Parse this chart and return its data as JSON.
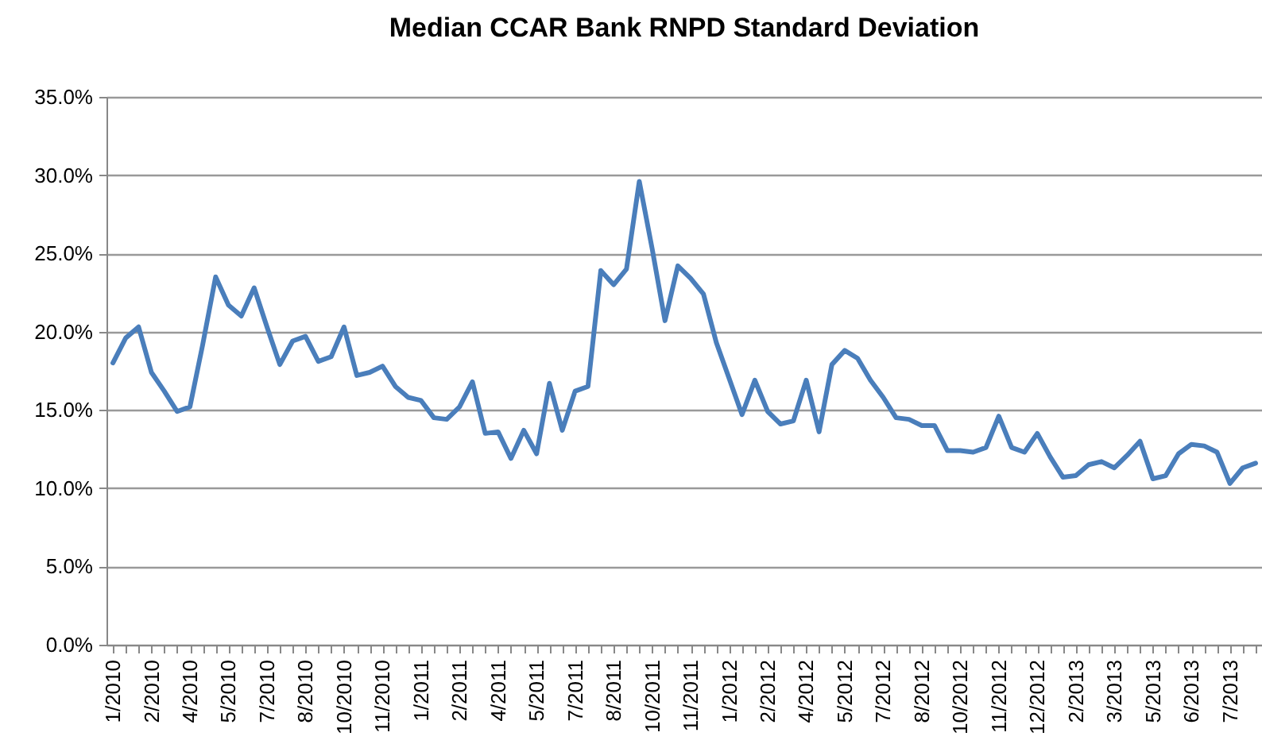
{
  "chart_data": {
    "type": "line",
    "title": "Median CCAR Bank RNPD Standard Deviation",
    "categories": [
      "1/2010",
      null,
      null,
      "2/2010",
      null,
      null,
      "4/2010",
      null,
      null,
      "5/2010",
      null,
      null,
      "7/2010",
      null,
      null,
      "8/2010",
      null,
      null,
      "10/2010",
      null,
      null,
      "11/2010",
      null,
      null,
      "1/2011",
      null,
      null,
      "2/2011",
      null,
      null,
      "4/2011",
      null,
      null,
      "5/2011",
      null,
      null,
      "7/2011",
      null,
      null,
      "8/2011",
      null,
      null,
      "10/2011",
      null,
      null,
      "11/2011",
      null,
      null,
      "1/2012",
      null,
      null,
      "2/2012",
      null,
      null,
      "4/2012",
      null,
      null,
      "5/2012",
      null,
      null,
      "7/2012",
      null,
      null,
      "8/2012",
      null,
      null,
      "10/2012",
      null,
      null,
      "11/2012",
      null,
      null,
      "12/2012",
      null,
      null,
      "2/2013",
      null,
      null,
      "3/2013",
      null,
      null,
      "5/2013",
      null,
      null,
      "6/2013",
      null,
      null,
      "7/2013",
      null,
      null
    ],
    "series": [
      {
        "color": "#4a7ebb",
        "values": [
          18.0,
          19.6,
          20.3,
          17.4,
          16.2,
          14.9,
          15.2,
          19.2,
          23.5,
          21.7,
          21.0,
          22.8,
          20.3,
          17.9,
          19.4,
          19.7,
          18.1,
          18.4,
          20.3,
          17.2,
          17.4,
          17.8,
          16.5,
          15.8,
          15.6,
          14.5,
          14.4,
          15.2,
          16.8,
          13.5,
          13.6,
          11.9,
          13.7,
          12.2,
          16.7,
          13.7,
          16.2,
          16.5,
          23.9,
          23.0,
          24.0,
          29.6,
          25.3,
          20.7,
          24.2,
          23.4,
          22.4,
          19.3,
          17.0,
          14.7,
          16.9,
          14.9,
          14.1,
          14.3,
          16.9,
          13.6,
          17.9,
          18.8,
          18.3,
          16.9,
          15.8,
          14.5,
          14.4,
          14.0,
          14.0,
          12.4,
          12.4,
          12.3,
          12.6,
          14.6,
          12.6,
          12.3,
          13.5,
          12.0,
          10.7,
          10.8,
          11.5,
          11.7,
          11.3,
          12.1,
          13.0,
          10.6,
          10.8,
          12.2,
          12.8,
          12.7,
          12.3,
          10.3,
          11.3,
          11.6
        ]
      }
    ],
    "ylim": [
      0,
      35
    ],
    "yticks": [
      {
        "value": 0,
        "label": "0.0%"
      },
      {
        "value": 5,
        "label": "5.0%"
      },
      {
        "value": 10,
        "label": "10.0%"
      },
      {
        "value": 15,
        "label": "15.0%"
      },
      {
        "value": 20,
        "label": "20.0%"
      },
      {
        "value": 25,
        "label": "25.0%"
      },
      {
        "value": 30,
        "label": "30.0%"
      },
      {
        "value": 35,
        "label": "35.0%"
      }
    ],
    "grid": "y",
    "line_style": "solid"
  }
}
